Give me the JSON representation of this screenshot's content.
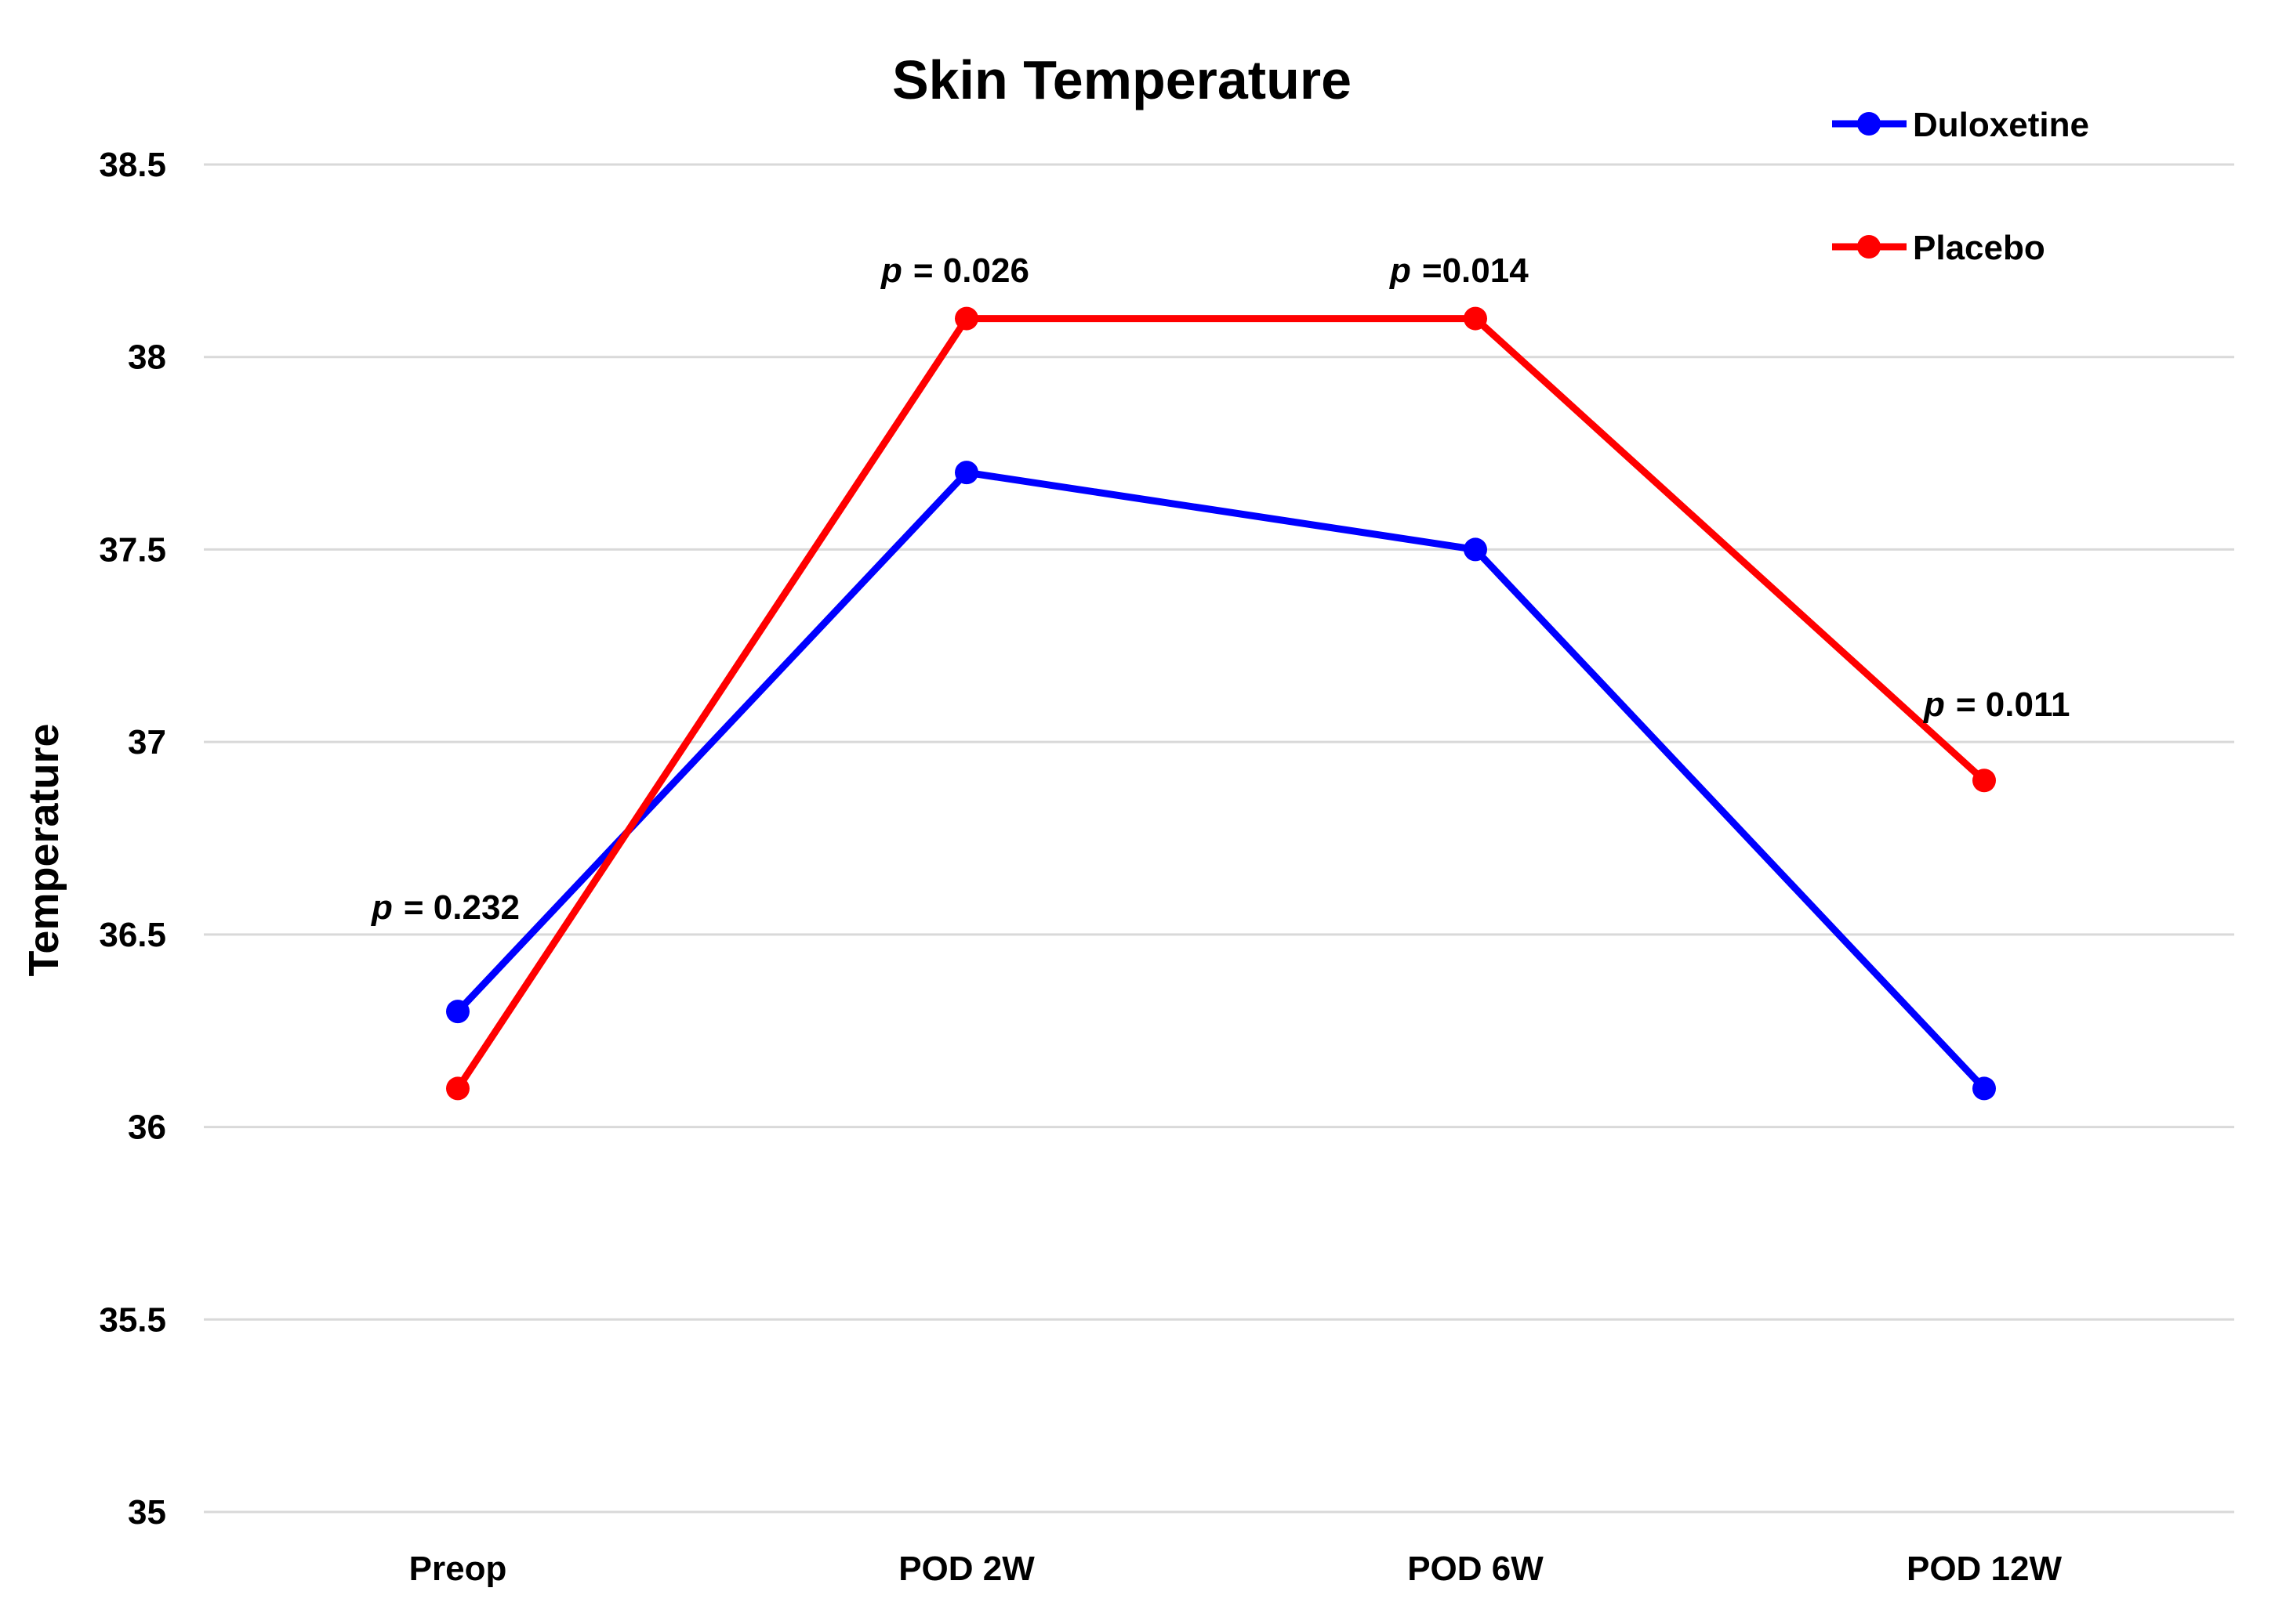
{
  "chart_data": {
    "type": "line",
    "title": "Skin Temperature",
    "xlabel": "",
    "ylabel": "Temperature",
    "categories": [
      "Preop",
      "POD 2W",
      "POD 6W",
      "POD 12W"
    ],
    "ylim": [
      35,
      38.5
    ],
    "yticks": [
      "35",
      "35.5",
      "36",
      "36.5",
      "37",
      "37.5",
      "38",
      "38.5"
    ],
    "grid": true,
    "legend_position": "top-right",
    "series": [
      {
        "name": "Duloxetine",
        "color": "#0000ff",
        "values": [
          36.3,
          37.7,
          37.5,
          36.1
        ]
      },
      {
        "name": "Placebo",
        "color": "#ff0000",
        "values": [
          36.1,
          38.1,
          38.1,
          36.9
        ]
      }
    ],
    "annotations": [
      {
        "category": "Preop",
        "p_symbol": "p",
        "text": "= 0.232"
      },
      {
        "category": "POD 2W",
        "p_symbol": "p",
        "text": "= 0.026"
      },
      {
        "category": "POD 6W",
        "p_symbol": "p",
        "text": "=0.014"
      },
      {
        "category": "POD 12W",
        "p_symbol": "p",
        "text": "= 0.011"
      }
    ]
  }
}
